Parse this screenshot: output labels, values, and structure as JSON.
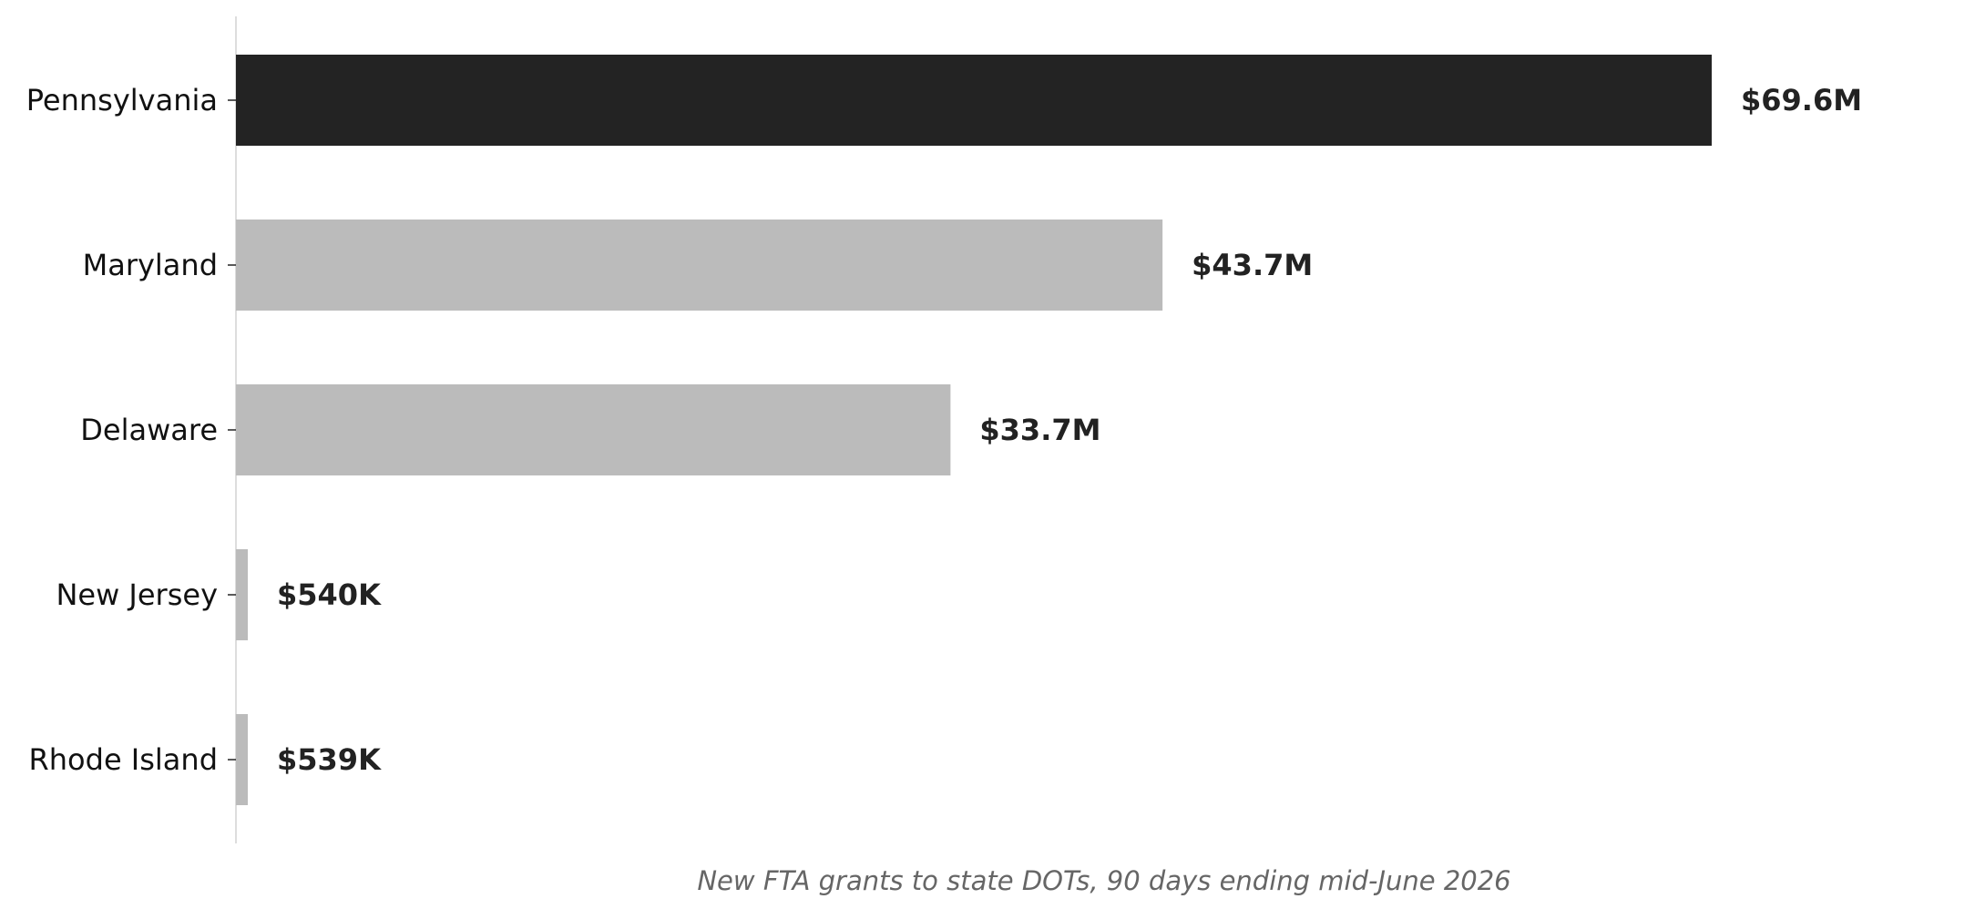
{
  "chart_data": {
    "type": "bar",
    "orientation": "horizontal",
    "categories": [
      "Pennsylvania",
      "Maryland",
      "Delaware",
      "New Jersey",
      "Rhode Island"
    ],
    "values": [
      69600000,
      43700000,
      33700000,
      540000,
      539000
    ],
    "value_labels": [
      "$69.6M",
      "$43.7M",
      "$33.7M",
      "$540K",
      "$539K"
    ],
    "highlight_index": 0,
    "colors": {
      "highlight": "#232323",
      "default": "#bbbbbb",
      "axis": "#dddddd"
    },
    "caption": "New FTA grants to state DOTs, 90 days ending mid-June 2026",
    "grid": false,
    "xlabel": "",
    "ylabel": ""
  }
}
